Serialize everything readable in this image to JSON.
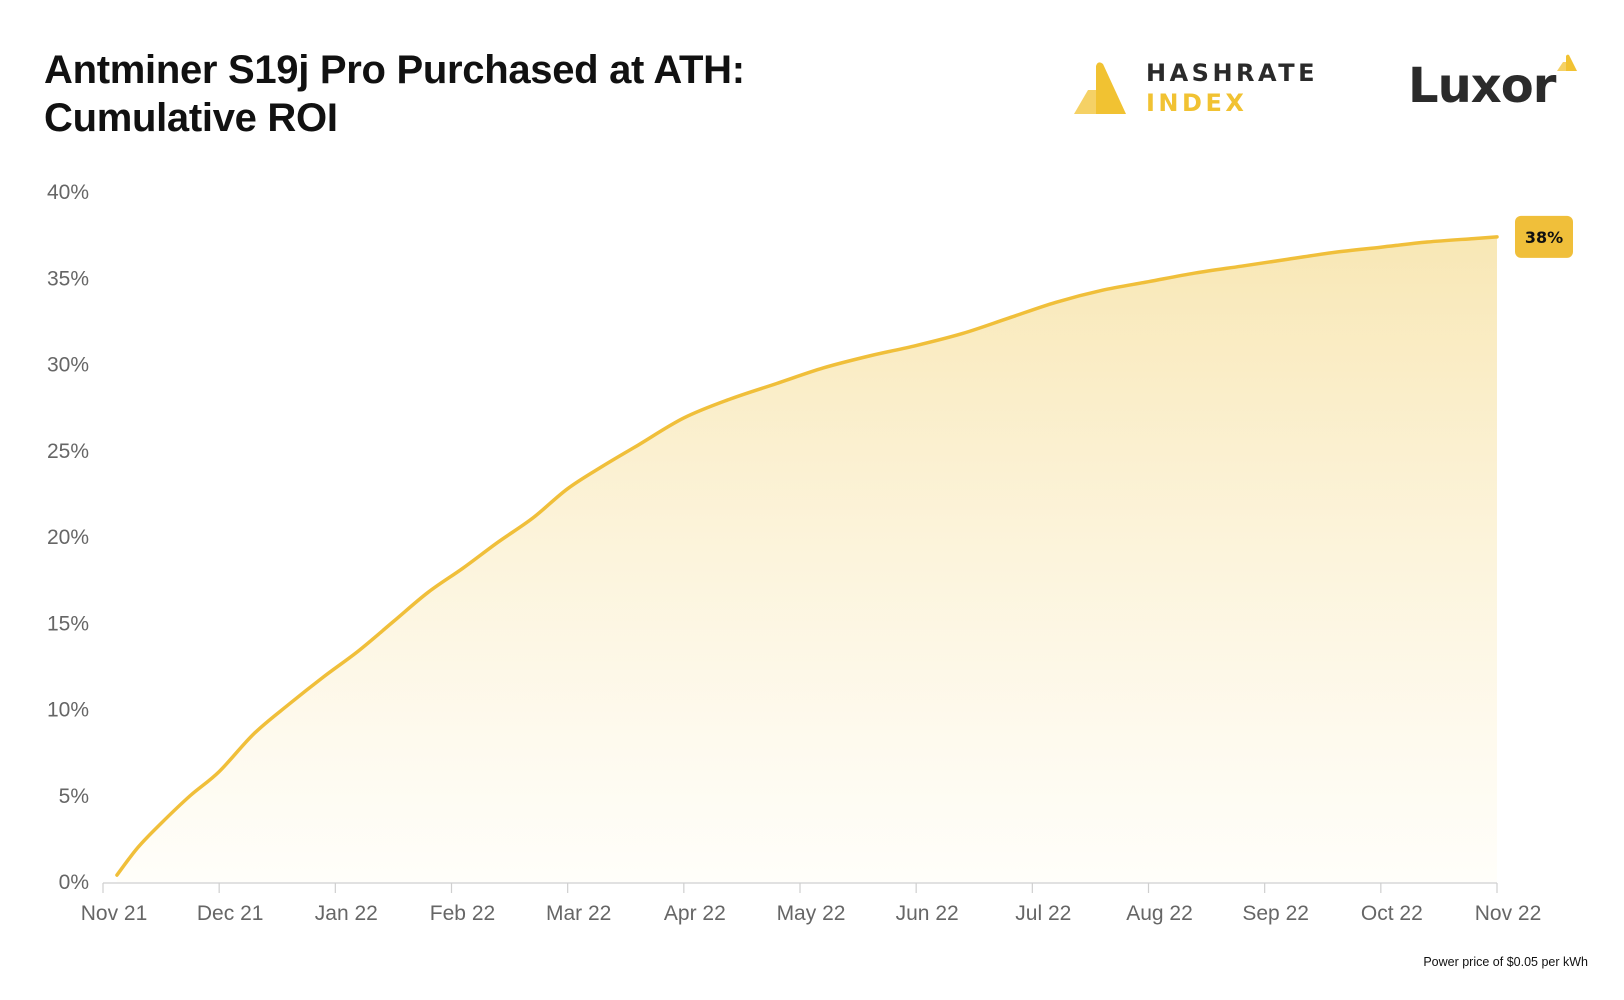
{
  "title_line1": "Antminer S19j Pro Purchased at ATH:",
  "title_line2": "Cumulative ROI",
  "logos": {
    "hashrate_line1": "HASHRATE",
    "hashrate_line2": "INDEX",
    "luxor": "Luxor"
  },
  "footnote": "Power price of $0.05 per kWh",
  "colors": {
    "line": "#f0bf3a",
    "fill_top": "#f7e3a8",
    "end_badge": "#f0bf3a"
  },
  "chart_data": {
    "type": "area",
    "title": "Antminer S19j Pro Purchased at ATH: Cumulative ROI",
    "xlabel": "",
    "ylabel": "",
    "x_ticks": [
      "Nov 21",
      "Dec 21",
      "Jan 22",
      "Feb 22",
      "Mar 22",
      "Apr 22",
      "May 22",
      "Jun 22",
      "Jul 22",
      "Aug 22",
      "Sep 22",
      "Oct 22",
      "Nov 22"
    ],
    "y_ticks": [
      "0%",
      "5%",
      "10%",
      "15%",
      "20%",
      "25%",
      "30%",
      "35%",
      "40%"
    ],
    "ylim": [
      0,
      40
    ],
    "xlim_months": [
      0,
      12
    ],
    "grid": false,
    "end_label": "38%",
    "series": [
      {
        "x_months": [
          0.12,
          0.3,
          0.5,
          0.75,
          1.0,
          1.3,
          1.6,
          1.9,
          2.2,
          2.5,
          2.8,
          3.1,
          3.4,
          3.7,
          4.0,
          4.3,
          4.6,
          5.0,
          5.4,
          5.8,
          6.2,
          6.6,
          7.0,
          7.4,
          7.8,
          8.2,
          8.6,
          9.0,
          9.4,
          9.8,
          10.2,
          10.6,
          11.0,
          11.4,
          11.8,
          12.0
        ],
        "values": [
          0.4,
          2.0,
          3.4,
          5.0,
          6.4,
          8.6,
          10.3,
          11.9,
          13.4,
          15.1,
          16.8,
          18.2,
          19.7,
          21.1,
          22.8,
          24.1,
          25.3,
          26.9,
          28.0,
          28.9,
          29.8,
          30.5,
          31.1,
          31.8,
          32.7,
          33.6,
          34.3,
          34.8,
          35.3,
          35.7,
          36.1,
          36.5,
          36.8,
          37.1,
          37.3,
          37.4
        ]
      }
    ]
  }
}
